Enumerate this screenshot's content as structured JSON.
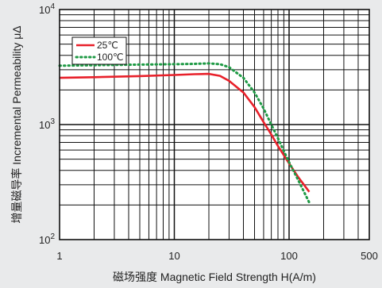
{
  "chart_data": {
    "type": "line",
    "xscale": "log",
    "yscale": "log",
    "xlim": [
      1,
      500
    ],
    "ylim": [
      100,
      10000
    ],
    "xlabel": "磁场强度 Magnetic Field Strength H(A/m)",
    "ylabel": "增量磁导率 Incremental Permeability μΔ",
    "x_ticks": [
      {
        "value": 1,
        "label": "1"
      },
      {
        "value": 10,
        "label": "10"
      },
      {
        "value": 100,
        "label": "100"
      },
      {
        "value": 500,
        "label": "500"
      }
    ],
    "y_ticks": [
      {
        "value": 100,
        "base": "10",
        "exp": "2"
      },
      {
        "value": 1000,
        "base": "10",
        "exp": "3"
      },
      {
        "value": 10000,
        "base": "10",
        "exp": "4"
      }
    ],
    "grid": true,
    "legend": "top-left",
    "series": [
      {
        "name": "25℃",
        "color": "#e8202a",
        "style": "solid",
        "x": [
          1,
          2,
          5,
          10,
          15,
          20,
          25,
          30,
          40,
          50,
          60,
          70,
          80,
          100,
          120,
          150
        ],
        "y": [
          2550,
          2580,
          2640,
          2700,
          2740,
          2760,
          2650,
          2400,
          1900,
          1420,
          1050,
          820,
          650,
          460,
          350,
          260
        ]
      },
      {
        "name": "100℃",
        "color": "#1f9a45",
        "style": "dotted",
        "x": [
          1,
          2,
          5,
          10,
          15,
          20,
          25,
          30,
          40,
          50,
          60,
          70,
          80,
          100,
          120,
          150
        ],
        "y": [
          3250,
          3280,
          3320,
          3350,
          3370,
          3400,
          3350,
          3150,
          2550,
          1900,
          1380,
          1000,
          760,
          470,
          330,
          210
        ]
      }
    ]
  }
}
